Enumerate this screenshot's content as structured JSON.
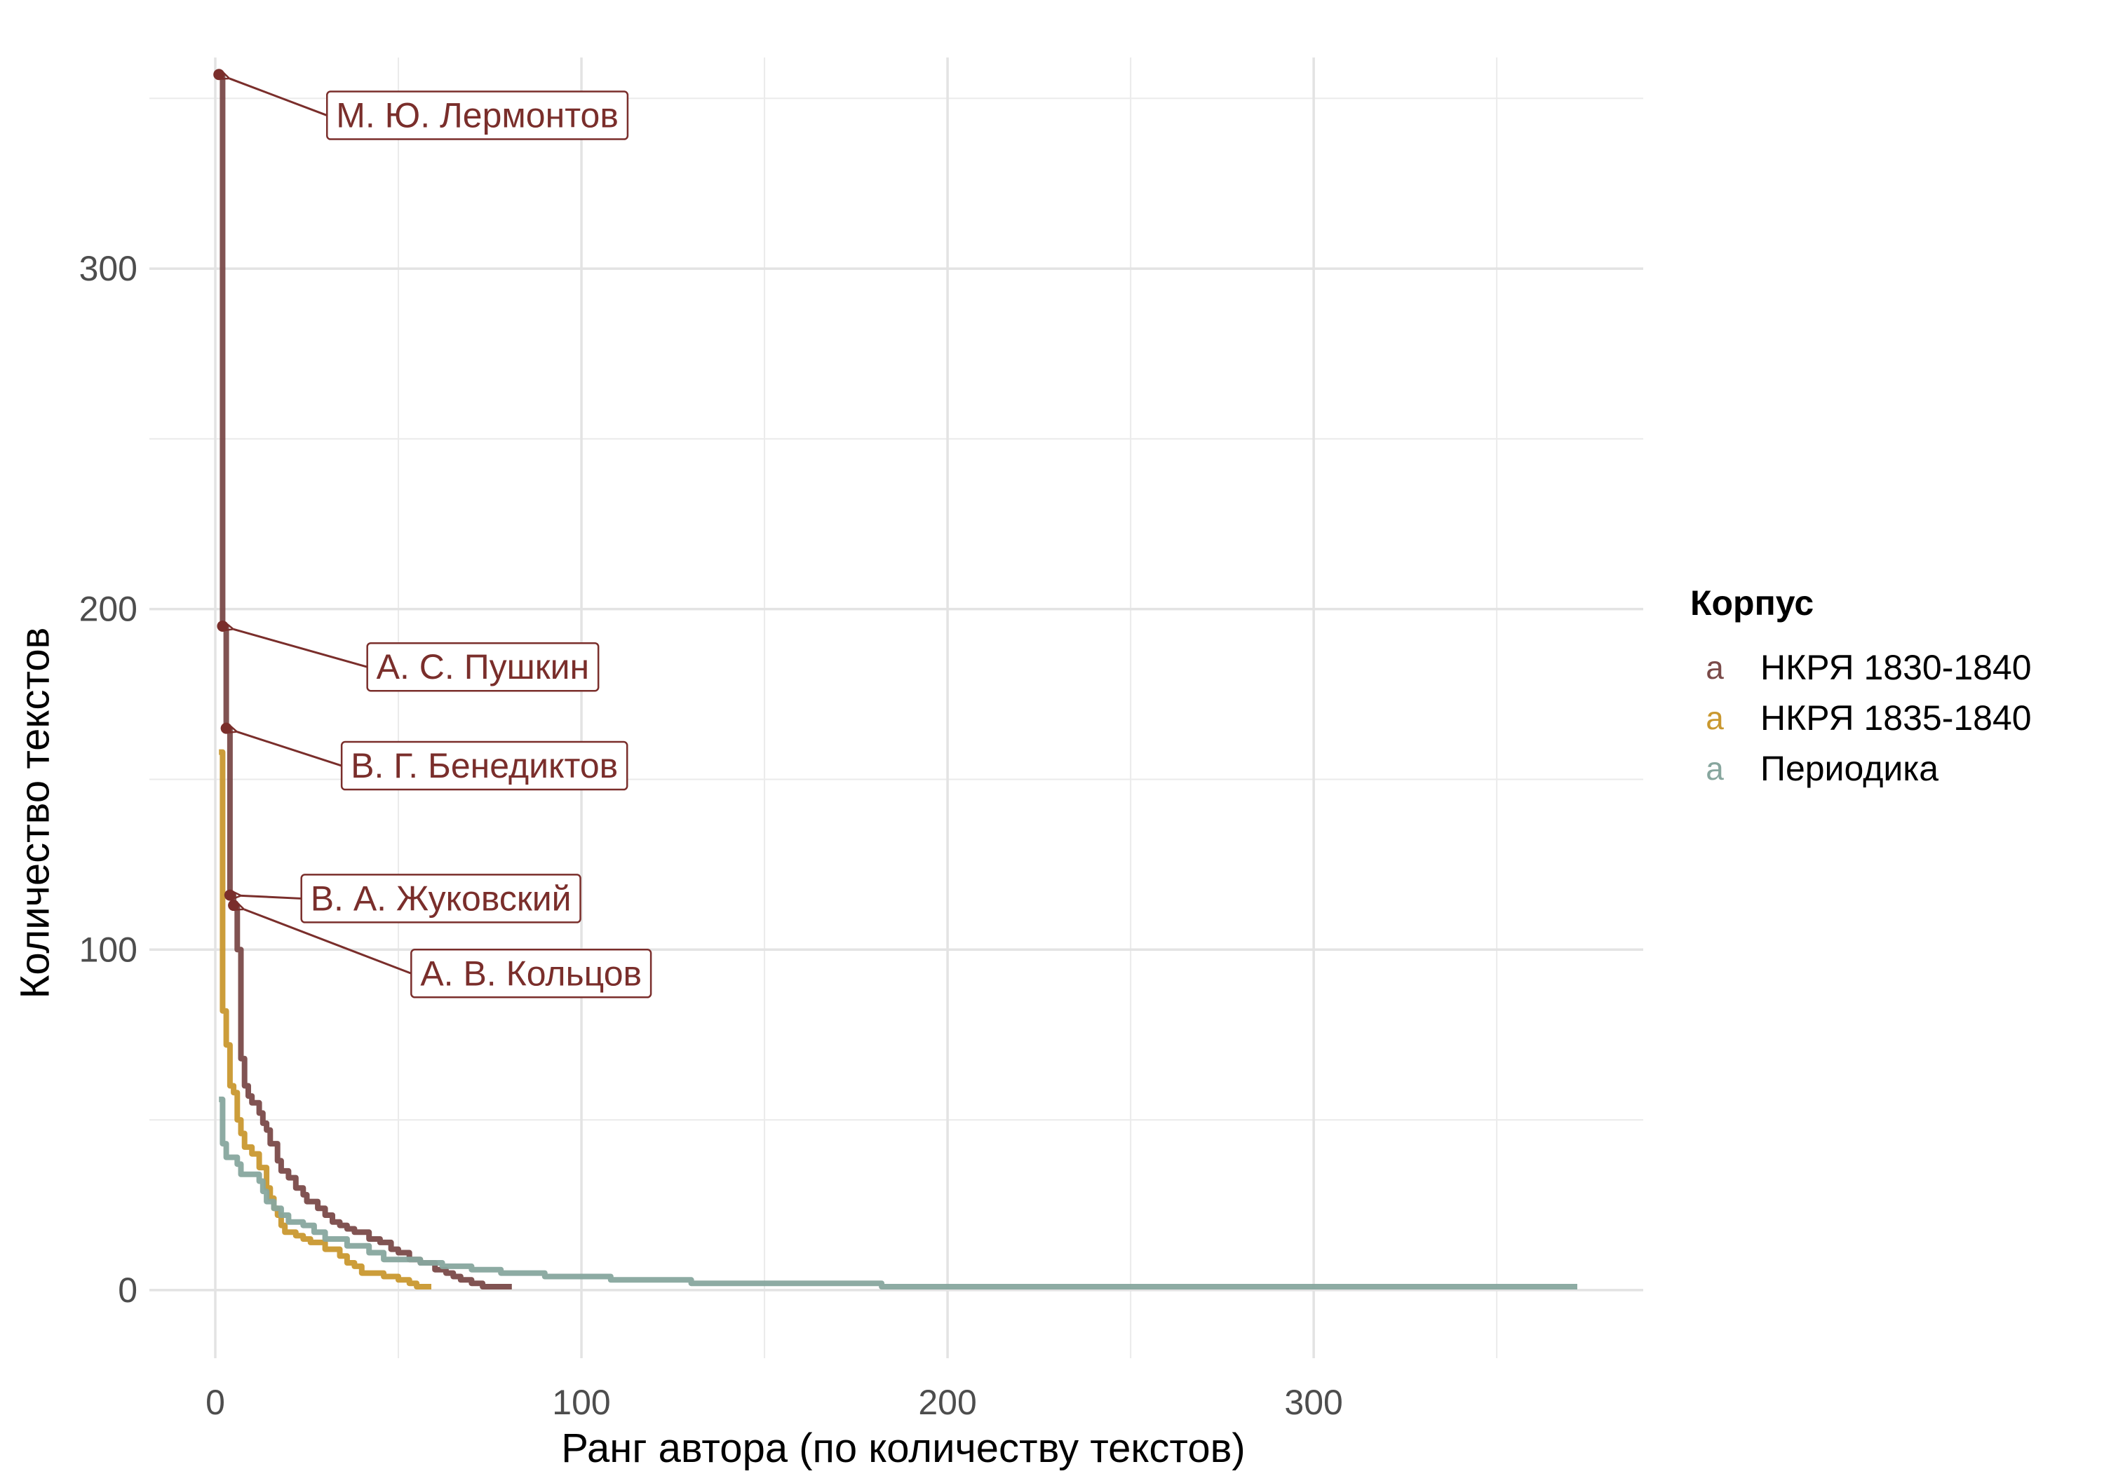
{
  "chart_data": {
    "type": "line",
    "title": "",
    "xlabel": "Ранг автора (по количеству текстов)",
    "ylabel": "Количество текстов",
    "xlim": [
      -18,
      390
    ],
    "ylim": [
      -20,
      362
    ],
    "x_ticks": [
      0,
      100,
      200,
      300
    ],
    "y_ticks": [
      0,
      100,
      200,
      300
    ],
    "x_tick_labels": [
      "0",
      "100",
      "200",
      "300"
    ],
    "y_tick_labels": [
      "0",
      "100",
      "200",
      "300"
    ],
    "x_minor": [
      50,
      150,
      250,
      350
    ],
    "y_minor": [
      50,
      150,
      250,
      350
    ],
    "grid": true,
    "legend": {
      "title": "Корпус",
      "position": "right",
      "key_glyph": "a"
    },
    "series": [
      {
        "name": "НКРЯ 1830-1840",
        "color": "#7A4A49",
        "step": true,
        "points": [
          [
            1,
            357
          ],
          [
            2,
            195
          ],
          [
            3,
            165
          ],
          [
            4,
            116
          ],
          [
            5,
            113
          ],
          [
            6,
            100
          ],
          [
            7,
            68
          ],
          [
            8,
            60
          ],
          [
            9,
            57
          ],
          [
            10,
            55
          ],
          [
            12,
            52
          ],
          [
            13,
            49
          ],
          [
            14,
            47
          ],
          [
            15,
            43
          ],
          [
            17,
            38
          ],
          [
            18,
            35
          ],
          [
            20,
            33
          ],
          [
            22,
            30
          ],
          [
            24,
            28
          ],
          [
            25,
            26
          ],
          [
            28,
            24
          ],
          [
            30,
            22
          ],
          [
            32,
            20
          ],
          [
            34,
            19
          ],
          [
            36,
            18
          ],
          [
            38,
            17
          ],
          [
            42,
            15
          ],
          [
            45,
            14
          ],
          [
            48,
            12
          ],
          [
            50,
            11
          ],
          [
            53,
            9
          ],
          [
            56,
            8
          ],
          [
            60,
            6
          ],
          [
            63,
            5
          ],
          [
            65,
            4
          ],
          [
            67,
            3
          ],
          [
            70,
            2
          ],
          [
            73,
            1
          ],
          [
            81,
            1
          ]
        ]
      },
      {
        "name": "НКРЯ 1835-1840",
        "color": "#C9982F",
        "step": true,
        "points": [
          [
            1,
            158
          ],
          [
            2,
            82
          ],
          [
            3,
            72
          ],
          [
            4,
            60
          ],
          [
            5,
            58
          ],
          [
            6,
            50
          ],
          [
            7,
            46
          ],
          [
            8,
            42
          ],
          [
            10,
            40
          ],
          [
            12,
            36
          ],
          [
            14,
            30
          ],
          [
            15,
            27
          ],
          [
            16,
            24
          ],
          [
            17,
            22
          ],
          [
            18,
            19
          ],
          [
            19,
            17
          ],
          [
            22,
            16
          ],
          [
            24,
            15
          ],
          [
            26,
            14
          ],
          [
            30,
            12
          ],
          [
            34,
            10
          ],
          [
            36,
            8
          ],
          [
            38,
            7
          ],
          [
            40,
            5
          ],
          [
            46,
            4
          ],
          [
            50,
            3
          ],
          [
            53,
            2
          ],
          [
            55,
            1
          ],
          [
            59,
            1
          ]
        ]
      },
      {
        "name": "Периодика",
        "color": "#87A69E",
        "step": true,
        "points": [
          [
            1,
            56
          ],
          [
            2,
            43
          ],
          [
            3,
            39
          ],
          [
            6,
            37
          ],
          [
            7,
            34
          ],
          [
            12,
            32
          ],
          [
            13,
            29
          ],
          [
            14,
            26
          ],
          [
            16,
            24
          ],
          [
            18,
            22
          ],
          [
            20,
            20
          ],
          [
            24,
            19
          ],
          [
            27,
            17
          ],
          [
            30,
            15
          ],
          [
            36,
            13
          ],
          [
            42,
            11
          ],
          [
            46,
            9
          ],
          [
            56,
            8
          ],
          [
            62,
            7
          ],
          [
            70,
            6
          ],
          [
            78,
            5
          ],
          [
            90,
            4
          ],
          [
            108,
            3
          ],
          [
            130,
            2
          ],
          [
            182,
            1
          ],
          [
            372,
            1
          ]
        ]
      }
    ],
    "annotations": [
      {
        "text": "М. Ю. Лермонтов",
        "x": 1,
        "y": 357,
        "label_x": 33,
        "label_y": 345,
        "color": "#7A2E2B"
      },
      {
        "text": "А. С. Пушкин",
        "x": 2,
        "y": 195,
        "label_x": 44,
        "label_y": 183,
        "color": "#7A2E2B"
      },
      {
        "text": "В. Г. Бенедиктов",
        "x": 3,
        "y": 165,
        "label_x": 37,
        "label_y": 154,
        "color": "#7A2E2B"
      },
      {
        "text": "В. А. Жуковский",
        "x": 4,
        "y": 116,
        "label_x": 26,
        "label_y": 115,
        "color": "#7A2E2B"
      },
      {
        "text": "А. В. Кольцов",
        "x": 5,
        "y": 113,
        "label_x": 56,
        "label_y": 93,
        "color": "#7A2E2B"
      }
    ]
  }
}
